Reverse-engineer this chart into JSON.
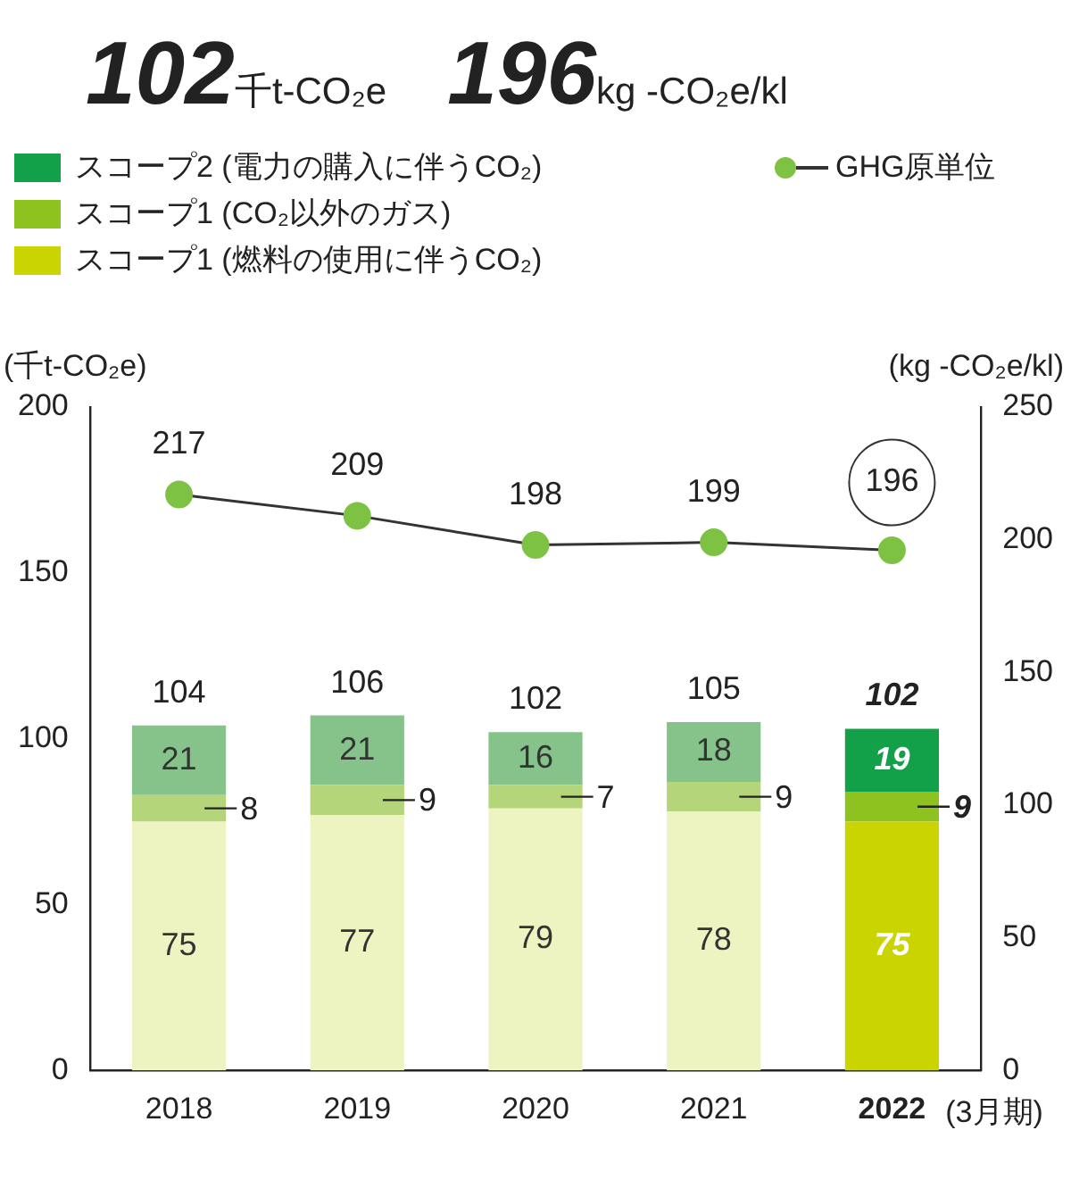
{
  "chart_data": {
    "type": "bar",
    "title": "102千t-CO₂e",
    "subtitle": "196kg -CO₂e/kl",
    "ylabel": "(千t-CO₂e)",
    "y2label": "(kg -CO₂e/kl)",
    "xlabel": "(3月期)",
    "categories": [
      "2018",
      "2019",
      "2020",
      "2021",
      "2022"
    ],
    "stacked": true,
    "legend": "top left",
    "data_labels": true,
    "grid": false,
    "ylim": [
      0,
      200
    ],
    "yticks": [
      0,
      50,
      100,
      150,
      200
    ],
    "y2lim": [
      0,
      250
    ],
    "y2ticks": [
      0,
      50,
      100,
      150,
      200,
      250
    ],
    "series": [
      {
        "name": "スコープ1 (燃料の使用に伴うCO₂)",
        "color": "#c9d400",
        "colors": [
          "#eef3c2",
          "#eef3c2",
          "#eef3c2",
          "#eef3c2",
          "#c9d400"
        ],
        "values": [
          75,
          77,
          79,
          78,
          75
        ]
      },
      {
        "name": "スコープ1 (CO₂以外のガス)",
        "color": "#8dc21f",
        "colors": [
          "#b5d57a",
          "#b5d57a",
          "#b5d57a",
          "#b5d57a",
          "#8dc21f"
        ],
        "values": [
          8,
          9,
          7,
          9,
          9
        ]
      },
      {
        "name": "スコープ2 (電力の購入に伴うCO₂)",
        "color": "#12a148",
        "colors": [
          "#86c38a",
          "#86c38a",
          "#86c38a",
          "#86c38a",
          "#12a148"
        ],
        "values": [
          21,
          21,
          16,
          18,
          19
        ]
      },
      {
        "name": "GHG原単位",
        "type": "line",
        "axis": "y2",
        "color": "#7dc242",
        "marker": "circle",
        "line_style": "solid",
        "values": [
          217,
          209,
          198,
          199,
          196
        ]
      }
    ],
    "totals": [
      "104",
      "106",
      "102",
      "105",
      "102"
    ]
  }
}
